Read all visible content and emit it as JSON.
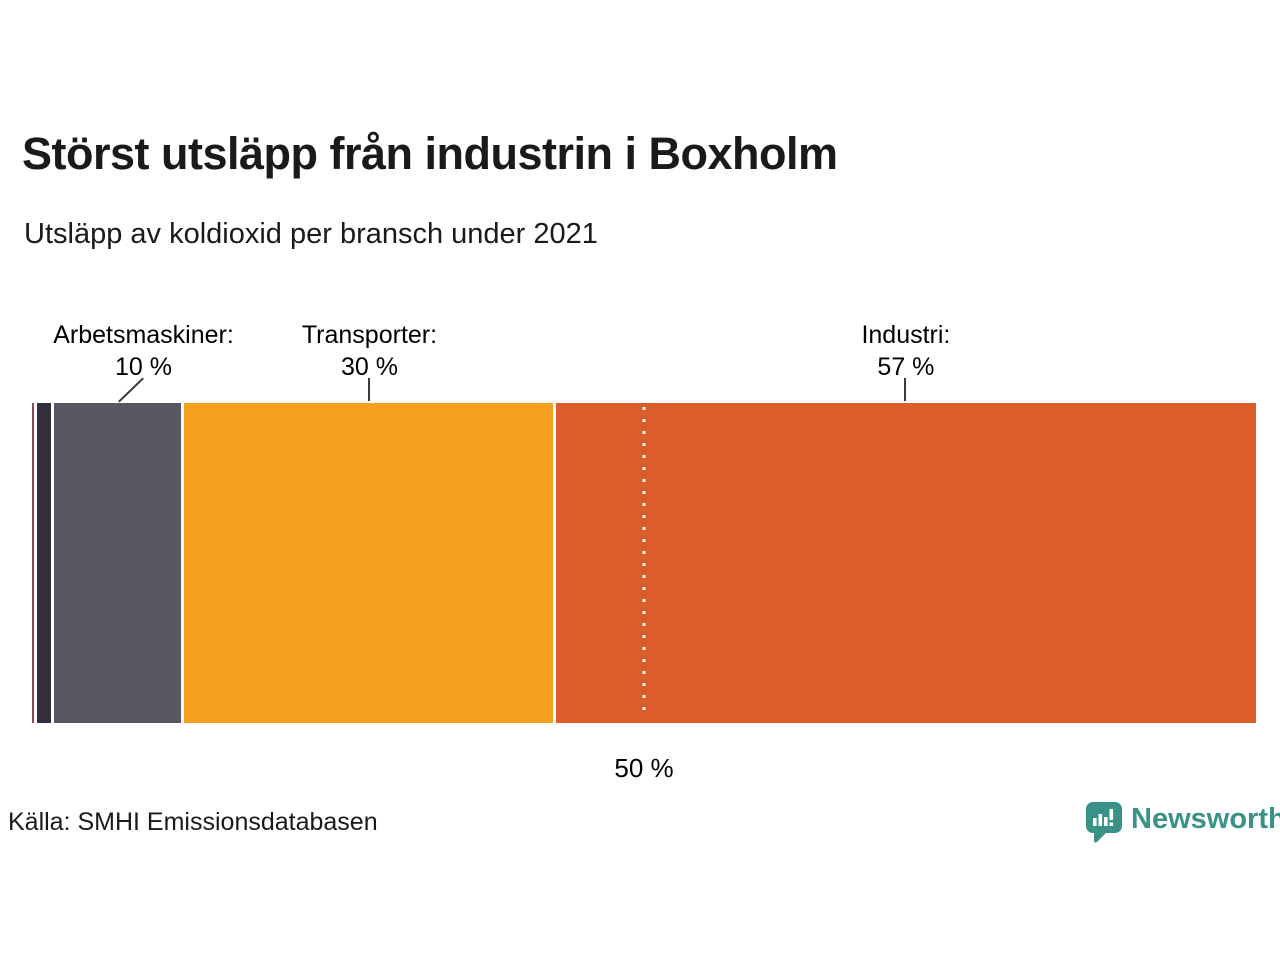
{
  "header": {
    "title": "Störst utsläpp från industrin i Boxholm",
    "subtitle": "Utsläpp av koldioxid per bransch under 2021"
  },
  "chart_data": {
    "type": "bar",
    "stacked": true,
    "orientation": "horizontal",
    "unit": "%",
    "xlim": [
      0,
      100
    ],
    "grid": false,
    "legend": "none",
    "segments": [
      {
        "label": "",
        "value": 0.2,
        "width_pct": 0.163,
        "color": "#8a4a55"
      },
      {
        "label": "",
        "value": 1,
        "width_pct": 1.144,
        "color": "#332e3d"
      },
      {
        "label": "Arbetsmaskiner",
        "value": 10,
        "width_pct": 10.38,
        "color": "#5a5563"
      },
      {
        "label": "Transporter",
        "value": 30,
        "width_pct": 30.15,
        "color": "#f5a01e"
      },
      {
        "label": "Industri",
        "value": 57,
        "width_pct": 57.19,
        "color": "#db5d2b"
      }
    ],
    "callouts": [
      {
        "label": "Arbetsmaskiner:",
        "value": "10 %",
        "x_pct": 9.11,
        "leader": "slanted",
        "leader_x_pct": 7.0
      },
      {
        "label": "Transporter:",
        "value": "30 %",
        "x_pct": 27.57,
        "leader": "vertical",
        "leader_x_pct": 27.57
      },
      {
        "label": "Industri:",
        "value": "57 %",
        "x_pct": 71.4,
        "leader": "vertical",
        "leader_x_pct": 71.3
      }
    ],
    "reference_line": {
      "position_pct": 50,
      "label": "50 %",
      "style": "dotted-white"
    }
  },
  "footer": {
    "source": "Källa: SMHI Emissionsdatabasen",
    "logo_text": "Newsworthy",
    "logo_color": "#3a9188"
  }
}
